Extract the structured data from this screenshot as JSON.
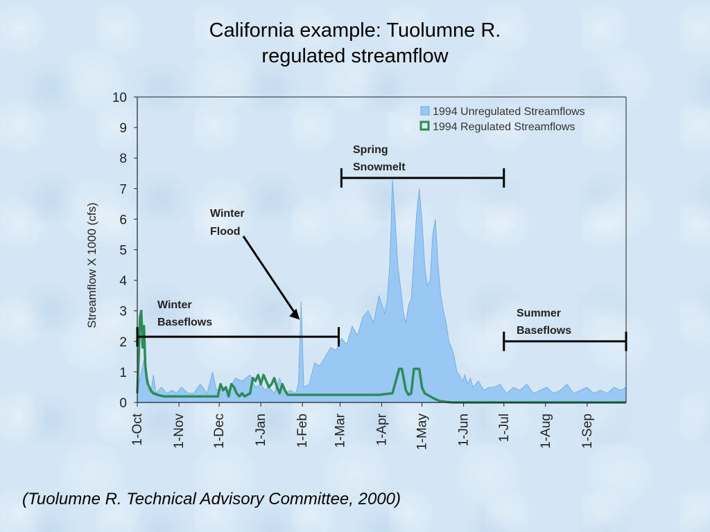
{
  "slide": {
    "title_line1": "California example: Tuolumne R.",
    "title_line2": "regulated streamflow",
    "caption": "(Tuolumne R. Technical Advisory Committee, 2000)"
  },
  "chart_data": {
    "type": "area",
    "ylabel": "Streamflow X 1000  (cfs)",
    "xlabel": "",
    "ylim": [
      0,
      10
    ],
    "yticks": [
      "0",
      "1",
      "2",
      "3",
      "4",
      "5",
      "6",
      "7",
      "8",
      "9",
      "10"
    ],
    "xticks": [
      "1-Oct",
      "1-Nov",
      "1-Dec",
      "1-Jan",
      "1-Feb",
      "1-Mar",
      "1-Apr",
      "1-May",
      "1-Jun",
      "1-Jul",
      "1-Aug",
      "1-Sep"
    ],
    "legend_position": "top-right",
    "series": [
      {
        "name": "1994 Unregulated Streamflows",
        "style": "area",
        "color": "#99c8f5",
        "x": [
          0,
          5,
          7,
          10,
          12,
          14,
          18,
          22,
          26,
          29,
          33,
          38,
          42,
          47,
          52,
          56,
          59,
          63,
          68,
          73,
          78,
          84,
          88,
          92,
          95,
          98,
          102,
          106,
          110,
          114,
          118,
          120,
          122,
          124,
          128,
          132,
          136,
          140,
          144,
          148,
          152,
          156,
          160,
          164,
          168,
          172,
          176,
          180,
          184,
          186,
          188,
          190,
          192,
          194,
          196,
          198,
          200,
          202,
          204,
          206,
          208,
          210,
          212,
          214,
          216,
          218,
          220,
          222,
          224,
          226,
          228,
          230,
          232,
          234,
          236,
          238,
          240,
          242,
          244,
          246,
          248,
          250,
          252,
          254,
          258,
          262,
          266,
          270,
          275,
          280,
          285,
          290,
          295,
          300,
          305,
          310,
          315,
          320,
          325,
          330,
          335,
          340,
          345,
          350,
          355,
          360,
          364
        ],
        "values": [
          0.4,
          1.4,
          0.5,
          0.3,
          0.9,
          0.3,
          0.5,
          0.3,
          0.4,
          0.3,
          0.5,
          0.3,
          0.3,
          0.6,
          0.3,
          1.0,
          0.4,
          0.5,
          0.4,
          0.8,
          0.7,
          0.9,
          0.5,
          0.6,
          0.4,
          0.5,
          0.3,
          0.8,
          0.3,
          0.4,
          0.3,
          0.6,
          3.3,
          0.5,
          0.6,
          1.3,
          1.2,
          1.5,
          1.8,
          1.7,
          2.1,
          1.9,
          2.5,
          2.2,
          2.8,
          3.0,
          2.6,
          3.5,
          2.9,
          3.3,
          4.5,
          7.3,
          6.0,
          4.5,
          3.8,
          3.0,
          2.6,
          3.2,
          3.4,
          4.8,
          6.2,
          7.0,
          6.0,
          4.5,
          3.8,
          4.0,
          5.5,
          6.0,
          4.5,
          3.5,
          3.0,
          2.6,
          2.0,
          1.8,
          1.5,
          1.0,
          0.9,
          0.7,
          0.9,
          0.6,
          0.8,
          0.5,
          0.6,
          0.7,
          0.4,
          0.5,
          0.5,
          0.6,
          0.3,
          0.5,
          0.4,
          0.6,
          0.3,
          0.4,
          0.5,
          0.3,
          0.4,
          0.6,
          0.3,
          0.4,
          0.5,
          0.3,
          0.4,
          0.3,
          0.5,
          0.4,
          0.5
        ]
      },
      {
        "name": "1994 Regulated Streamflows",
        "style": "line",
        "color": "#2e8b57",
        "x": [
          0,
          1,
          2,
          3,
          4,
          5,
          6,
          7,
          8,
          9,
          10,
          12,
          15,
          20,
          30,
          40,
          50,
          60,
          62,
          64,
          66,
          68,
          70,
          72,
          74,
          76,
          78,
          80,
          84,
          86,
          88,
          90,
          92,
          94,
          96,
          98,
          100,
          102,
          104,
          106,
          108,
          110,
          112,
          116,
          120,
          150,
          170,
          180,
          190,
          195,
          197,
          200,
          202,
          204,
          206,
          208,
          210,
          212,
          214,
          220,
          225,
          230,
          235,
          240,
          364
        ],
        "values": [
          0.3,
          1.4,
          2.8,
          3.0,
          1.8,
          2.5,
          1.2,
          0.8,
          0.6,
          0.5,
          0.4,
          0.3,
          0.25,
          0.2,
          0.2,
          0.2,
          0.2,
          0.2,
          0.6,
          0.4,
          0.5,
          0.2,
          0.6,
          0.5,
          0.3,
          0.2,
          0.3,
          0.2,
          0.3,
          0.8,
          0.7,
          0.9,
          0.6,
          0.9,
          0.7,
          0.5,
          0.6,
          0.8,
          0.5,
          0.3,
          0.6,
          0.4,
          0.25,
          0.25,
          0.25,
          0.25,
          0.25,
          0.25,
          0.3,
          1.1,
          1.1,
          0.4,
          0.25,
          0.3,
          1.1,
          1.1,
          1.1,
          0.5,
          0.3,
          0.15,
          0.05,
          0.02,
          0.0,
          0.0,
          0.0
        ]
      }
    ],
    "annotations": [
      {
        "id": "winter-baseflows",
        "text": [
          "Winter",
          "Baseflows"
        ],
        "range": [
          0,
          150
        ],
        "y": 2.15
      },
      {
        "id": "winter-flood",
        "text": [
          "Winter",
          "Flood"
        ],
        "arrow_to": [
          122,
          2.8
        ]
      },
      {
        "id": "spring-snowmelt",
        "text": [
          "Spring",
          "Snowmelt"
        ],
        "range": [
          152,
          273
        ],
        "y": 7.35
      },
      {
        "id": "summer-baseflows",
        "text": [
          "Summer",
          "Baseflows"
        ],
        "range": [
          273,
          364
        ],
        "y": 2.0
      }
    ]
  }
}
